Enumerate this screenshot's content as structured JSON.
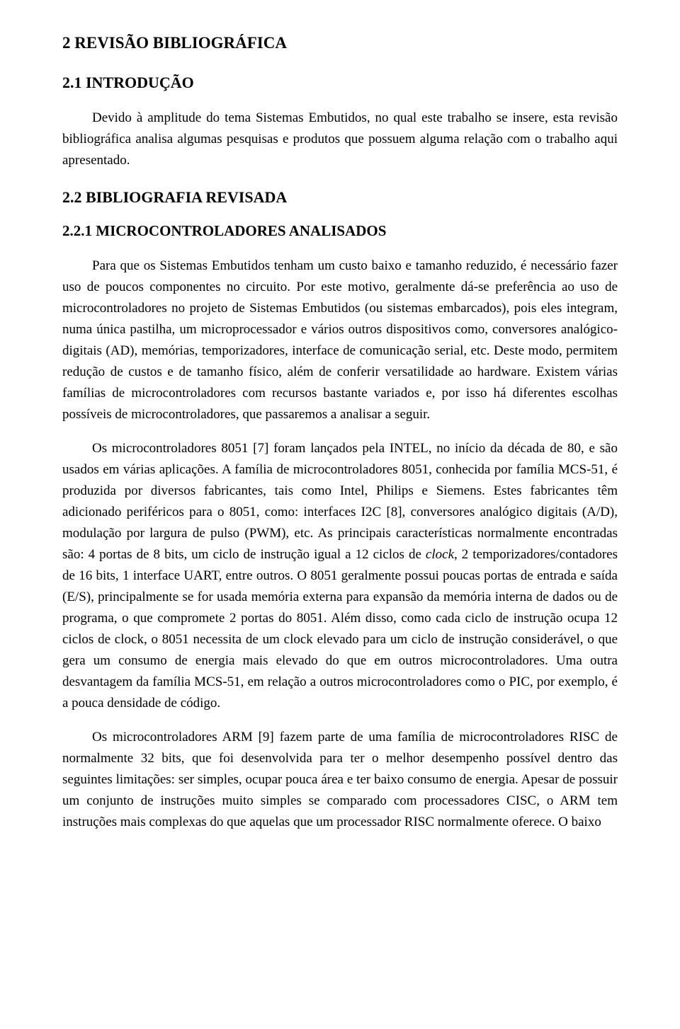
{
  "doc": {
    "background": "#ffffff",
    "text_color": "#000000",
    "font_family": "Times New Roman",
    "body_fontsize": 19,
    "h1_fontsize": 23,
    "h2_fontsize": 22,
    "h3_fontsize": 21,
    "line_height": 1.58,
    "text_indent": 42,
    "page_padding": [
      48,
      88,
      48,
      88
    ]
  },
  "h1": "2 REVISÃO BIBLIOGRÁFICA",
  "h2": "2.1 INTRODUÇÃO",
  "p1": "Devido à amplitude do tema Sistemas Embutidos, no qual este trabalho se insere, esta revisão bibliográfica analisa algumas pesquisas e produtos que possuem alguma relação com o trabalho aqui apresentado.",
  "h3": "2.2 BIBLIOGRAFIA REVISADA",
  "h4": "2.2.1 MICROCONTROLADORES ANALISADOS",
  "p2": "Para que os Sistemas Embutidos tenham um custo baixo e tamanho reduzido, é necessário fazer uso de poucos componentes no circuito. Por este motivo, geralmente dá-se preferência ao uso de microcontroladores no projeto de Sistemas Embutidos (ou sistemas embarcados), pois eles integram, numa única pastilha, um microprocessador e vários outros dispositivos como, conversores analógico-digitais (AD), memórias, temporizadores, interface de comunicação serial, etc. Deste modo, permitem redução de custos e de tamanho físico, além de conferir versatilidade ao hardware. Existem várias famílias de microcontroladores com recursos bastante variados e, por isso há diferentes escolhas possíveis de microcontroladores, que passaremos a analisar a seguir.",
  "p3a": "Os microcontroladores 8051 [7] foram lançados pela INTEL, no início da década de 80, e são usados em várias aplicações. A família de microcontroladores 8051, conhecida por família MCS-51, é produzida por diversos fabricantes, tais como Intel, Philips e Siemens. Estes fabricantes têm adicionado periféricos para o 8051, como: interfaces I2C [8], conversores analógico digitais (A/D), modulação por largura de pulso (PWM), etc. As principais características normalmente encontradas são: 4 portas de 8 bits, um ciclo de instrução igual a 12 ciclos de ",
  "p3_em": "clock",
  "p3b": ", 2 temporizadores/contadores de 16 bits, 1 interface UART, entre outros. O 8051 geralmente possui poucas portas de entrada e saída (E/S), principalmente se for usada memória externa para expansão da memória interna de dados ou de programa, o que compromete 2 portas do 8051. Além disso, como cada ciclo de instrução ocupa 12 ciclos de clock, o 8051 necessita de um clock elevado para um ciclo de instrução considerável, o que gera um consumo de energia mais elevado do que em outros microcontroladores. Uma outra desvantagem da família MCS-51, em relação a outros microcontroladores como o PIC, por exemplo, é a pouca densidade de código.",
  "p4": "Os microcontroladores ARM [9] fazem parte de uma família de microcontroladores RISC de normalmente 32 bits, que foi desenvolvida para ter o melhor desempenho possível dentro das seguintes limitações: ser simples, ocupar pouca área e ter baixo consumo de energia. Apesar de possuir um conjunto de instruções muito simples se comparado com processadores CISC, o ARM tem instruções mais complexas do que aquelas que um processador RISC normalmente oferece. O baixo"
}
